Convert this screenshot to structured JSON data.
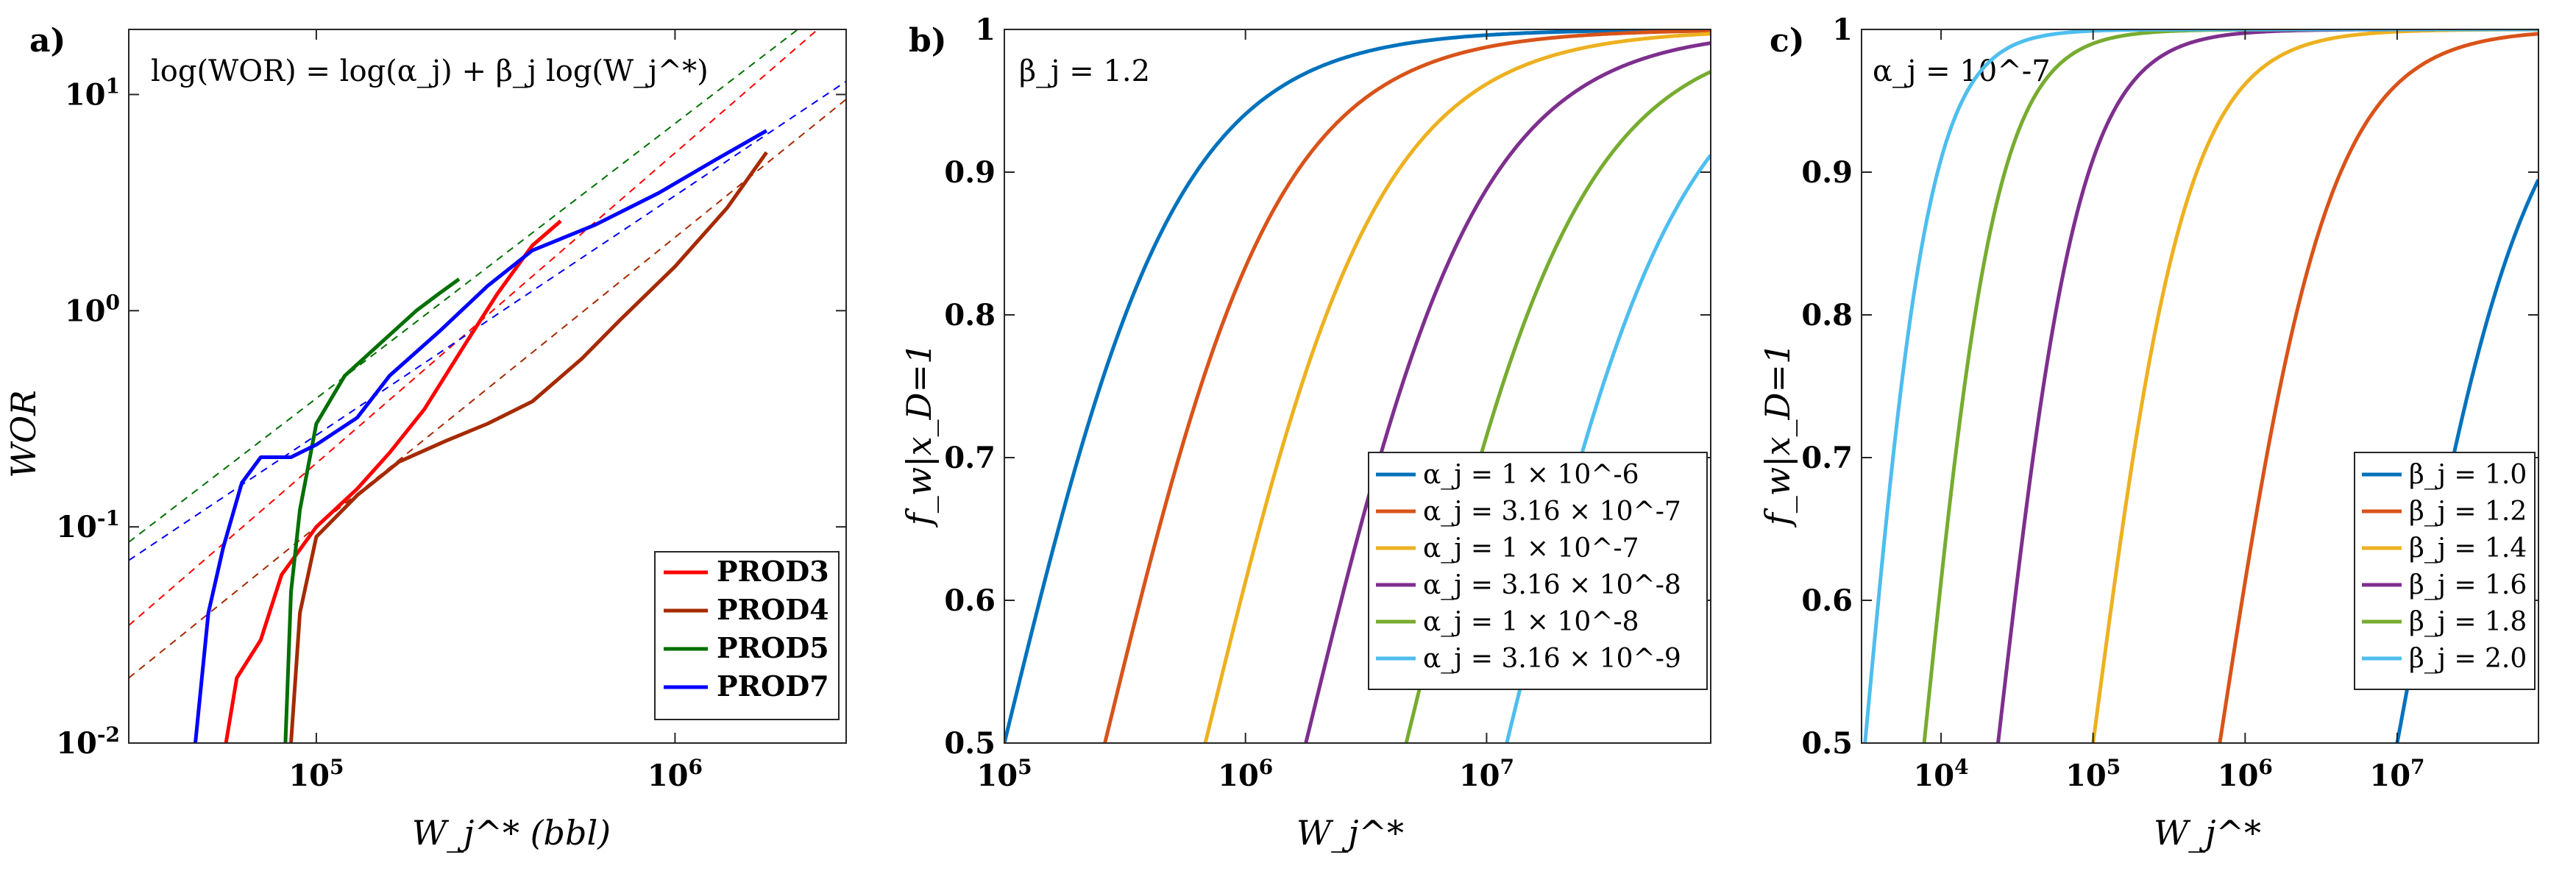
{
  "panels": {
    "a": {
      "label": "a)",
      "annotation": "log(WOR) = log(α_j) + β_j log(W_j^*)",
      "ylabel": "WOR",
      "xlabel": "W_j^* (bbl)"
    },
    "b": {
      "label": "b)",
      "annotation": "β_j = 1.2",
      "ylabel": "f_w|x_D=1",
      "xlabel": "W_j^*"
    },
    "c": {
      "label": "c)",
      "annotation": "α_j = 10^-7",
      "ylabel": "f_w|x_D=1",
      "xlabel": "W_j^*"
    }
  },
  "chart_data": [
    {
      "type": "line",
      "panel": "a",
      "xscale": "log",
      "yscale": "log",
      "xlim": [
        30000,
        3000000
      ],
      "ylim": [
        0.01,
        20
      ],
      "xticks": [
        {
          "v": 100000,
          "label": "10^5"
        },
        {
          "v": 1000000,
          "label": "10^6"
        }
      ],
      "yticks": [
        {
          "v": 0.01,
          "label": "10^-2"
        },
        {
          "v": 0.1,
          "label": "10^-1"
        },
        {
          "v": 1,
          "label": "10^0"
        },
        {
          "v": 10,
          "label": "10^1"
        }
      ],
      "grid": false,
      "legend": "bottom-right",
      "series": [
        {
          "name": "PROD3",
          "color": "#ff0000",
          "x": [
            56000,
            60000,
            70000,
            80000,
            100000,
            130000,
            160000,
            200000,
            260000,
            320000,
            400000,
            480000
          ],
          "y": [
            0.01,
            0.02,
            0.03,
            0.06,
            0.1,
            0.15,
            0.22,
            0.35,
            0.7,
            1.2,
            2.0,
            2.6
          ]
        },
        {
          "name": "PROD4",
          "color": "#a52a00",
          "x": [
            85000,
            90000,
            100000,
            130000,
            170000,
            230000,
            300000,
            400000,
            550000,
            700000,
            1000000,
            1400000,
            1800000
          ],
          "y": [
            0.01,
            0.04,
            0.09,
            0.14,
            0.2,
            0.25,
            0.3,
            0.38,
            0.6,
            0.9,
            1.6,
            3.0,
            5.4
          ]
        },
        {
          "name": "PROD5",
          "color": "#007000",
          "x": [
            82000,
            85000,
            90000,
            100000,
            120000,
            150000,
            190000,
            220000,
            250000
          ],
          "y": [
            0.01,
            0.05,
            0.12,
            0.3,
            0.5,
            0.7,
            1.0,
            1.2,
            1.4
          ]
        },
        {
          "name": "PROD7",
          "color": "#0000ff",
          "x": [
            46000,
            50000,
            55000,
            62000,
            70000,
            85000,
            100000,
            130000,
            160000,
            220000,
            300000,
            400000,
            600000,
            900000,
            1300000,
            1800000
          ],
          "y": [
            0.01,
            0.04,
            0.08,
            0.16,
            0.21,
            0.21,
            0.24,
            0.32,
            0.5,
            0.8,
            1.3,
            1.9,
            2.5,
            3.5,
            5.0,
            6.8
          ]
        }
      ],
      "fits": [
        {
          "color": "#ff0000",
          "x": [
            30000,
            2500000
          ],
          "y": [
            0.035,
            20
          ]
        },
        {
          "color": "#a52a00",
          "x": [
            30000,
            3000000
          ],
          "y": [
            0.02,
            9.5
          ]
        },
        {
          "color": "#007000",
          "x": [
            30000,
            2200000
          ],
          "y": [
            0.085,
            20
          ]
        },
        {
          "color": "#0000ff",
          "x": [
            30000,
            3000000
          ],
          "y": [
            0.07,
            11.5
          ]
        }
      ]
    },
    {
      "type": "line",
      "panel": "b",
      "xscale": "log",
      "yscale": "linear",
      "xlim": [
        100000,
        85000000
      ],
      "ylim": [
        0.5,
        1
      ],
      "xticks": [
        {
          "v": 100000,
          "label": "10^5"
        },
        {
          "v": 1000000,
          "label": "10^6"
        },
        {
          "v": 10000000,
          "label": "10^7"
        }
      ],
      "yticks": [
        {
          "v": 0.5,
          "label": "0.5"
        },
        {
          "v": 0.6,
          "label": "0.6"
        },
        {
          "v": 0.7,
          "label": "0.7"
        },
        {
          "v": 0.8,
          "label": "0.8"
        },
        {
          "v": 0.9,
          "label": "0.9"
        },
        {
          "v": 1,
          "label": "1"
        }
      ],
      "grid": false,
      "legend": "bottom-right",
      "beta": 1.2,
      "series": [
        {
          "name": "α_j = 1 × 10^-6",
          "alpha": 1e-06,
          "color": "#0072bd"
        },
        {
          "name": "α_j = 3.16 × 10^-7",
          "alpha": 3.16e-07,
          "color": "#d95319"
        },
        {
          "name": "α_j = 1 × 10^-7",
          "alpha": 1e-07,
          "color": "#edb120"
        },
        {
          "name": "α_j = 3.16 × 10^-8",
          "alpha": 3.16e-08,
          "color": "#7e2f8e"
        },
        {
          "name": "α_j = 1 × 10^-8",
          "alpha": 1e-08,
          "color": "#77ac30"
        },
        {
          "name": "α_j = 3.16 × 10^-9",
          "alpha": 3.16e-09,
          "color": "#4dbeee"
        }
      ]
    },
    {
      "type": "line",
      "panel": "c",
      "xscale": "log",
      "yscale": "linear",
      "xlim": [
        3000,
        85000000
      ],
      "ylim": [
        0.5,
        1
      ],
      "xticks": [
        {
          "v": 10000,
          "label": "10^4"
        },
        {
          "v": 100000,
          "label": "10^5"
        },
        {
          "v": 1000000,
          "label": "10^6"
        },
        {
          "v": 10000000,
          "label": "10^7"
        }
      ],
      "yticks": [
        {
          "v": 0.5,
          "label": "0.5"
        },
        {
          "v": 0.6,
          "label": "0.6"
        },
        {
          "v": 0.7,
          "label": "0.7"
        },
        {
          "v": 0.8,
          "label": "0.8"
        },
        {
          "v": 0.9,
          "label": "0.9"
        },
        {
          "v": 1,
          "label": "1"
        }
      ],
      "grid": false,
      "legend": "bottom-right",
      "alpha": 1e-07,
      "series": [
        {
          "name": "β_j = 1.0",
          "beta": 1.0,
          "color": "#0072bd"
        },
        {
          "name": "β_j = 1.2",
          "beta": 1.2,
          "color": "#d95319"
        },
        {
          "name": "β_j = 1.4",
          "beta": 1.4,
          "color": "#edb120"
        },
        {
          "name": "β_j = 1.6",
          "beta": 1.6,
          "color": "#7e2f8e"
        },
        {
          "name": "β_j = 1.8",
          "beta": 1.8,
          "color": "#77ac30"
        },
        {
          "name": "β_j = 2.0",
          "beta": 2.0,
          "color": "#4dbeee"
        }
      ]
    }
  ]
}
